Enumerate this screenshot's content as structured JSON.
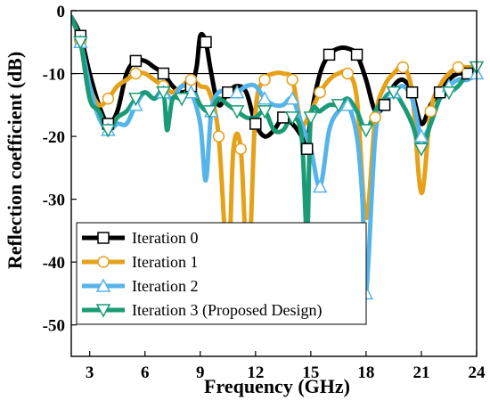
{
  "chart_data": {
    "type": "line",
    "xlabel": "Frequency (GHz)",
    "ylabel": "Reflection coefficient (dB)",
    "xlim": [
      2,
      24
    ],
    "ylim": [
      -55,
      0
    ],
    "xticks": [
      3,
      6,
      9,
      12,
      15,
      18,
      21,
      24
    ],
    "yticks": [
      0,
      -10,
      -20,
      -30,
      -40,
      -50
    ],
    "reference_line": -10,
    "grid": false,
    "legend_position": "bottom-left",
    "series": [
      {
        "name": "Iteration 0",
        "color": "#000000",
        "marker": "square",
        "x": [
          2,
          2.5,
          3,
          3.5,
          4,
          4.5,
          5,
          5.5,
          6,
          6.5,
          7,
          7.5,
          8,
          8.5,
          8.8,
          9,
          9.3,
          9.6,
          10,
          10.5,
          11,
          11.5,
          12,
          12.5,
          13,
          13.5,
          14,
          14.5,
          14.8,
          15,
          15.5,
          16,
          16.5,
          17,
          17.5,
          18,
          18.5,
          19,
          19.5,
          20,
          20.5,
          21,
          21.5,
          22,
          22.5,
          23,
          23.5,
          24
        ],
        "y": [
          -1,
          -4,
          -10,
          -15,
          -18,
          -16,
          -10,
          -8,
          -8,
          -9,
          -10,
          -12,
          -13,
          -12,
          -9,
          -4,
          -5,
          -10,
          -15,
          -13,
          -12,
          -13,
          -18,
          -20,
          -19,
          -17,
          -18,
          -20,
          -22,
          -17,
          -10,
          -7,
          -6,
          -6,
          -7,
          -11,
          -16,
          -15,
          -12,
          -11,
          -13,
          -18,
          -15,
          -13,
          -11,
          -10,
          -10,
          -9
        ]
      },
      {
        "name": "Iteration 1",
        "color": "#E6A11A",
        "marker": "circle",
        "x": [
          2,
          2.5,
          3,
          3.5,
          4,
          4.5,
          5,
          5.5,
          6,
          6.5,
          7,
          7.5,
          8,
          8.5,
          9,
          9.5,
          10,
          10.5,
          10.8,
          11.2,
          11.6,
          12,
          12.5,
          13,
          13.5,
          14,
          14.5,
          15,
          15.5,
          16,
          16.5,
          17,
          17.5,
          18,
          18.5,
          19,
          19.5,
          20,
          20.5,
          21,
          21.5,
          22,
          22.5,
          23,
          23.5,
          24
        ],
        "y": [
          -1,
          -5,
          -12,
          -15,
          -14,
          -12,
          -11,
          -10,
          -10,
          -11,
          -12,
          -13,
          -12,
          -11,
          -12,
          -13,
          -20,
          -41,
          -22,
          -22,
          -42,
          -16,
          -11,
          -10,
          -10,
          -11,
          -18,
          -16,
          -13,
          -11,
          -10,
          -10,
          -14,
          -33,
          -17,
          -12,
          -10,
          -9,
          -13,
          -29,
          -16,
          -12,
          -10,
          -9,
          -9,
          -9
        ]
      },
      {
        "name": "Iteration 2",
        "color": "#56B4E9",
        "marker": "triangle-up",
        "x": [
          2,
          2.5,
          3,
          3.5,
          4,
          4.5,
          5,
          5.5,
          6,
          6.5,
          7,
          7.5,
          8,
          8.5,
          9,
          9.3,
          9.6,
          10,
          10.5,
          11,
          11.5,
          12,
          12.5,
          13,
          13.5,
          14,
          14.5,
          15,
          15.5,
          16,
          16.5,
          17,
          17.5,
          17.8,
          18,
          18.5,
          19,
          19.5,
          20,
          20.5,
          21,
          21.5,
          22,
          22.5,
          23,
          23.5,
          24
        ],
        "y": [
          -1,
          -5,
          -12,
          -17,
          -19,
          -18,
          -18,
          -15,
          -13,
          -14,
          -13,
          -14,
          -12,
          -13,
          -18,
          -27,
          -16,
          -13,
          -13,
          -13,
          -12,
          -12,
          -14,
          -15,
          -15,
          -14,
          -18,
          -22,
          -28,
          -19,
          -16,
          -15,
          -20,
          -30,
          -45,
          -20,
          -14,
          -13,
          -12,
          -14,
          -20,
          -18,
          -14,
          -12,
          -11,
          -11,
          -10
        ]
      },
      {
        "name": "Iteration 3 (Proposed Design)",
        "color": "#1A9B76",
        "marker": "triangle-down",
        "x": [
          2,
          2.5,
          3,
          3.5,
          4,
          4.5,
          5,
          5.5,
          6,
          6.5,
          7,
          7.2,
          7.5,
          8,
          8.5,
          9,
          9.5,
          10,
          10.5,
          11,
          11.5,
          12,
          12.5,
          13,
          13.5,
          14,
          14.5,
          14.8,
          15,
          15.5,
          16,
          16.5,
          17,
          17.5,
          18,
          18.5,
          19,
          19.5,
          20,
          20.5,
          21,
          21.5,
          22,
          22.5,
          23,
          23.5,
          24
        ],
        "y": [
          -1,
          -5,
          -14,
          -16,
          -19,
          -17,
          -16,
          -14,
          -13,
          -14,
          -13,
          -19,
          -14,
          -14,
          -12,
          -15,
          -16,
          -14,
          -15,
          -16,
          -17,
          -17,
          -16,
          -19,
          -19,
          -17,
          -20,
          -36,
          -17,
          -16,
          -15,
          -15,
          -14,
          -16,
          -19,
          -16,
          -14,
          -13,
          -15,
          -18,
          -22,
          -18,
          -14,
          -13,
          -12,
          -10,
          -9
        ]
      }
    ]
  }
}
